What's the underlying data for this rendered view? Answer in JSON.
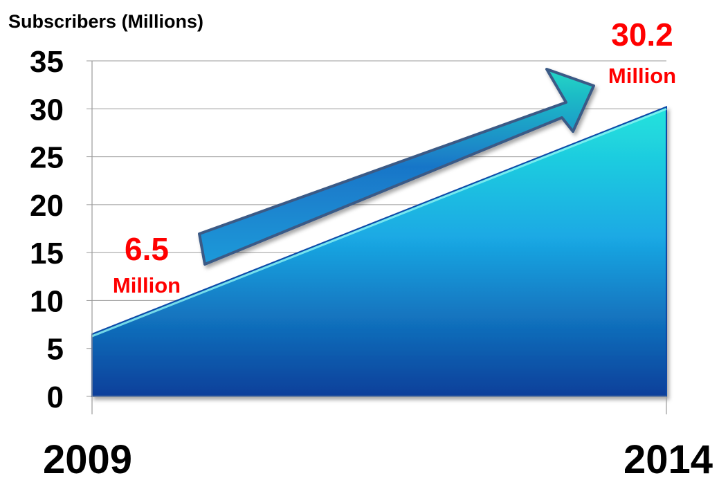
{
  "chart_data": {
    "type": "area",
    "ylabel": "Subscribers (Millions)",
    "x": [
      "2009",
      "2014"
    ],
    "values": [
      6.5,
      30.2
    ],
    "ylim": [
      0,
      35
    ],
    "yticks": [
      0,
      5,
      10,
      15,
      20,
      25,
      30,
      35
    ],
    "grid": true,
    "annotations": [
      {
        "value": "6.5",
        "unit": "Million"
      },
      {
        "value": "30.2",
        "unit": "Million"
      }
    ],
    "colors": {
      "area_top": "#22e0dc",
      "area_bottom": "#0a3f9a",
      "arrow_fill": "#1fa8d8",
      "arrow_stroke": "#3b5a86",
      "callout_text": "#ff0000"
    }
  }
}
